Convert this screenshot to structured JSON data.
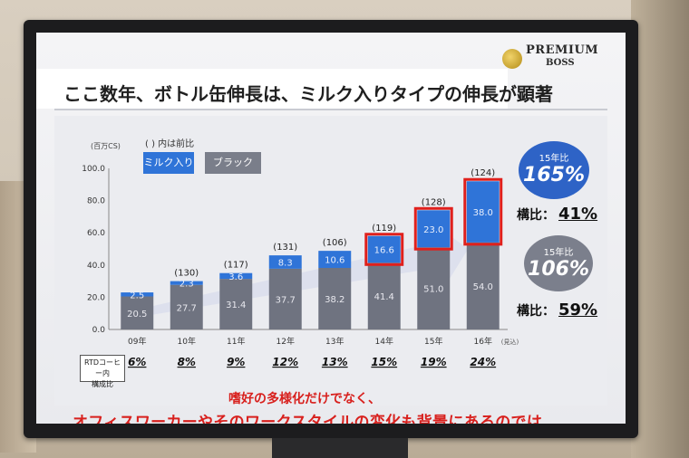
{
  "slide": {
    "title": "ここ数年、ボトル缶伸長は、ミルク入りタイプの伸長が顕著",
    "logo": {
      "line1": "PREMIUM",
      "line2": "BOSS"
    },
    "legend_note": "(  ) 内は前比",
    "legend": {
      "milk": "ミルク入り",
      "black": "ブラック"
    },
    "unit_label": "(百万CS)",
    "share_label_line1": "RTDコーヒー内",
    "share_label_line2": "構成比",
    "badge_milk": {
      "label": "15年比",
      "value": "165%"
    },
    "badge_black": {
      "label": "15年比",
      "value": "106%"
    },
    "ratio_milk": {
      "label": "構比：",
      "value": "41%"
    },
    "ratio_black": {
      "label": "構比：",
      "value": "59%"
    },
    "note_line1": "嗜好の多様化だけでなく、",
    "note_line2": "オフィスワーカーやそのワークスタイルの変化も背景にあるのでは"
  },
  "chart_data": {
    "type": "bar",
    "stacked": true,
    "categories": [
      "09年",
      "10年",
      "11年",
      "12年",
      "13年",
      "14年",
      "15年",
      "16年"
    ],
    "category_suffix_last": "(見込)",
    "series": [
      {
        "name": "ブラック",
        "values": [
          20.5,
          27.7,
          31.4,
          37.7,
          38.2,
          41.4,
          51.0,
          54.0
        ],
        "color": "#6f7380"
      },
      {
        "name": "ミルク入り",
        "values": [
          2.5,
          2.3,
          3.6,
          8.3,
          10.6,
          16.6,
          23.0,
          38.0
        ],
        "color": "#2f74d8"
      }
    ],
    "growth_labels": [
      "",
      "(130)",
      "(117)",
      "(131)",
      "(106)",
      "(119)",
      "(128)",
      "(124)"
    ],
    "highlighted_indices": [
      5,
      6,
      7
    ],
    "highlight_color": "#e0201c",
    "share_values": [
      "6%",
      "8%",
      "9%",
      "12%",
      "13%",
      "15%",
      "19%",
      "24%"
    ],
    "ylim": [
      0,
      100
    ],
    "yticks": [
      "0.0",
      "20.0",
      "40.0",
      "60.0",
      "80.0",
      "100.0"
    ],
    "ylabel": "(百万CS)",
    "xlabel": "",
    "grid": false
  }
}
